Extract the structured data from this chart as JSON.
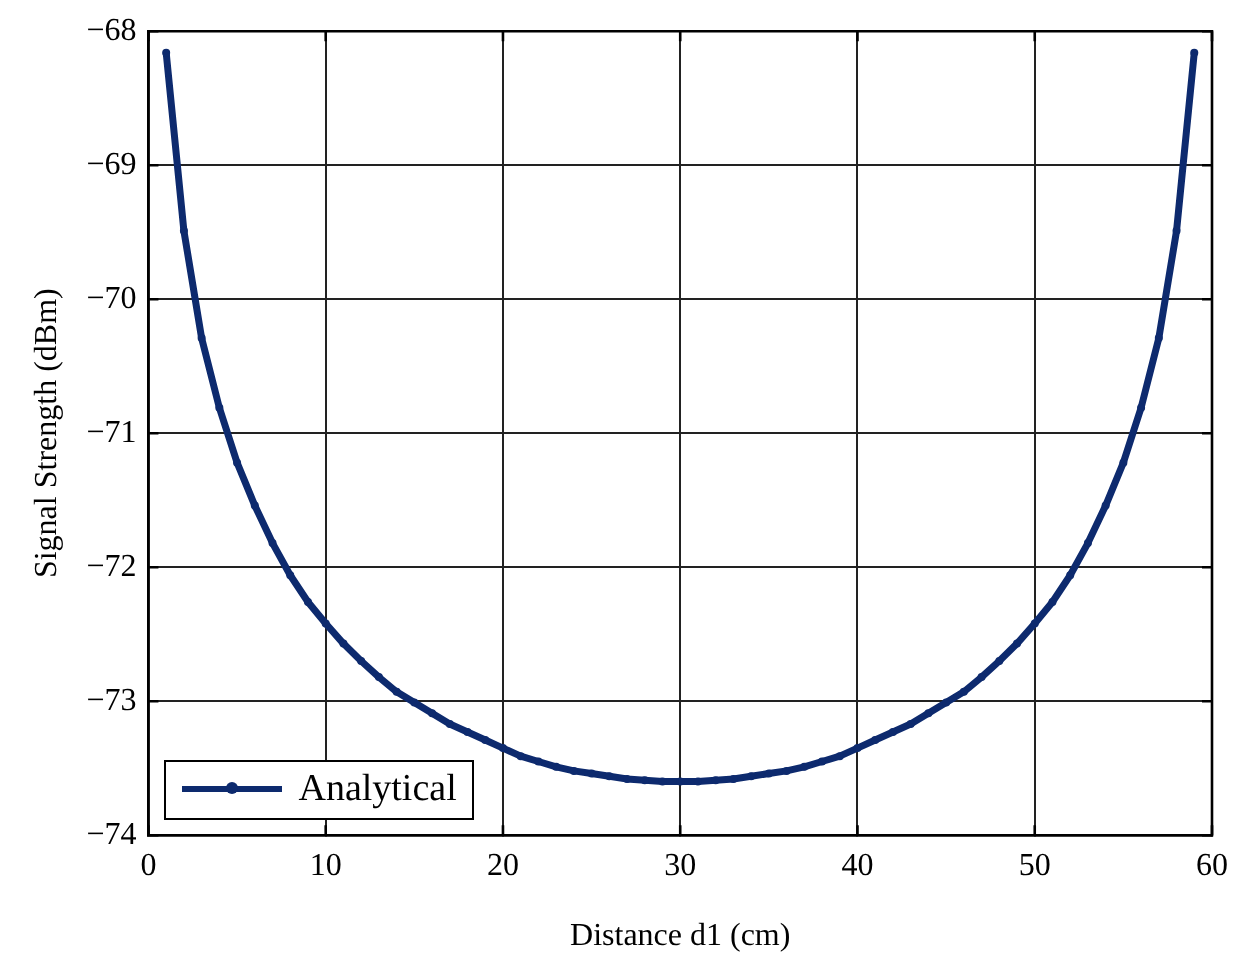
{
  "chart_data": {
    "type": "line",
    "xlabel": "Distance d1 (cm)",
    "ylabel": "Signal Strength (dBm)",
    "x": [
      1,
      2,
      3,
      4,
      5,
      6,
      7,
      8,
      9,
      10,
      11,
      12,
      13,
      14,
      15,
      16,
      17,
      18,
      19,
      20,
      21,
      22,
      23,
      24,
      25,
      26,
      27,
      28,
      29,
      30,
      31,
      32,
      33,
      34,
      35,
      36,
      37,
      38,
      39,
      40,
      41,
      42,
      43,
      44,
      45,
      46,
      47,
      48,
      49,
      50,
      51,
      52,
      53,
      54,
      55,
      56,
      57,
      58,
      59
    ],
    "series": [
      {
        "name": "Analytical",
        "color": "#0d2a6e",
        "values": [
          -68.16,
          -69.49,
          -70.29,
          -70.81,
          -71.22,
          -71.54,
          -71.82,
          -72.06,
          -72.26,
          -72.42,
          -72.57,
          -72.7,
          -72.82,
          -72.93,
          -73.01,
          -73.09,
          -73.17,
          -73.23,
          -73.29,
          -73.35,
          -73.41,
          -73.45,
          -73.49,
          -73.52,
          -73.54,
          -73.56,
          -73.58,
          -73.59,
          -73.6,
          -73.6,
          -73.6,
          -73.59,
          -73.58,
          -73.56,
          -73.54,
          -73.52,
          -73.49,
          -73.45,
          -73.41,
          -73.35,
          -73.29,
          -73.23,
          -73.17,
          -73.09,
          -73.01,
          -72.93,
          -72.82,
          -72.7,
          -72.57,
          -72.42,
          -72.26,
          -72.06,
          -71.82,
          -71.54,
          -71.22,
          -70.81,
          -70.29,
          -69.49,
          -68.16
        ]
      }
    ],
    "xlim": [
      0,
      60
    ],
    "xticks": [
      0,
      10,
      20,
      30,
      40,
      50,
      60
    ],
    "ylim": [
      -74,
      -68
    ],
    "yticks": [
      -74,
      -73,
      -72,
      -71,
      -70,
      -69,
      -68
    ],
    "grid": true,
    "legend": "bottom left",
    "marker": "circle",
    "line_style": "solid"
  }
}
